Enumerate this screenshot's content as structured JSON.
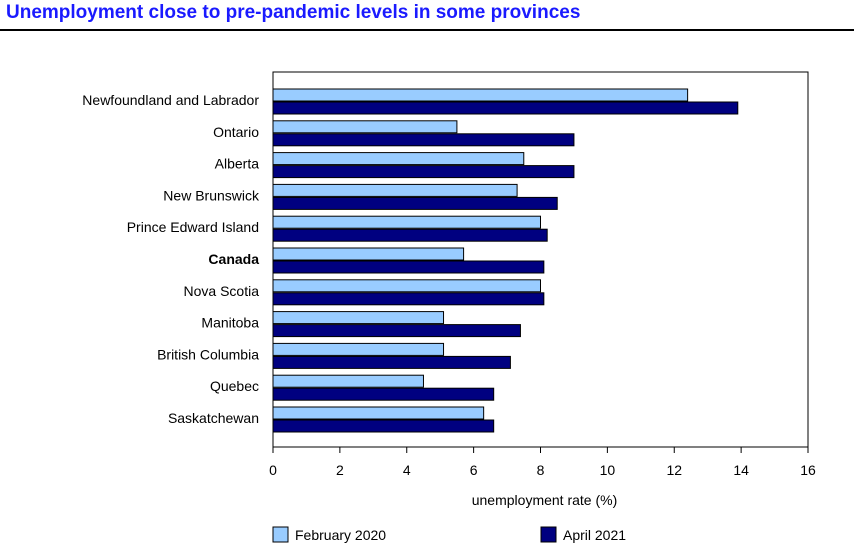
{
  "colors": {
    "february_2020": "#99ccff",
    "april_2021": "#000080",
    "title": "#1a1aff"
  },
  "chart_data": {
    "type": "bar",
    "orientation": "horizontal",
    "title": "Unemployment close to pre-pandemic levels in some provinces",
    "xlabel": "unemployment rate (%)",
    "ylabel": "",
    "xlim": [
      0,
      16
    ],
    "x_ticks": [
      "0",
      "2",
      "4",
      "6",
      "8",
      "10",
      "12",
      "14",
      "16"
    ],
    "grid": false,
    "legend_position": "bottom",
    "categories": [
      "Newfoundland and Labrador",
      "Ontario",
      "Alberta",
      "New Brunswick",
      "Prince Edward Island",
      "Canada",
      "Nova Scotia",
      "Manitoba",
      "British Columbia",
      "Quebec",
      "Saskatchewan"
    ],
    "bold_categories": [
      "Canada"
    ],
    "series": [
      {
        "name": "February 2020",
        "color": "#99ccff",
        "values": [
          12.4,
          5.5,
          7.5,
          7.3,
          8.0,
          5.7,
          8.0,
          5.1,
          5.1,
          4.5,
          6.3
        ]
      },
      {
        "name": "April 2021",
        "color": "#000080",
        "values": [
          13.9,
          9.0,
          9.0,
          8.5,
          8.2,
          8.1,
          8.1,
          7.4,
          7.1,
          6.6,
          6.6
        ]
      }
    ]
  }
}
